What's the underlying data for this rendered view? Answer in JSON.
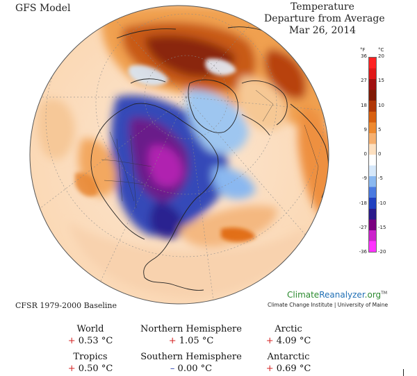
{
  "header": {
    "model": "GFS Model",
    "title_lines": [
      "Temperature",
      "Departure from Average",
      "Mar 26, 2014"
    ]
  },
  "scale": {
    "unit_f": "°F",
    "unit_c": "°C",
    "ticks_f": [
      "36",
      "27",
      "18",
      "9",
      "0",
      "-9",
      "-18",
      "-27",
      "-36"
    ],
    "ticks_c": [
      "20",
      "15",
      "10",
      "5",
      "0",
      "-5",
      "-10",
      "-15",
      "-20"
    ],
    "colors": [
      "#ff33ff",
      "#cc22cc",
      "#7a0080",
      "#2a1a8a",
      "#2040c0",
      "#4a7ae0",
      "#8ab8f0",
      "#d6e8fa",
      "#ffffff",
      "#fde0c0",
      "#f6b070",
      "#ee8a30",
      "#d86010",
      "#b03808",
      "#801a05",
      "#a01010",
      "#e01818",
      "#ff2222"
    ]
  },
  "footer": {
    "baseline": "CFSR 1979-2000 Baseline",
    "brand_part1": "Climate",
    "brand_part2": "Reanalyzer",
    "brand_part3": ".org",
    "brand_tm": "TM",
    "brand_sub": "Climate Change Institute | University of Maine"
  },
  "stats": [
    {
      "label": "World",
      "sign": "+",
      "value": "0.53 °C"
    },
    {
      "label": "Northern Hemisphere",
      "sign": "+",
      "value": "1.05 °C"
    },
    {
      "label": "Arctic",
      "sign": "+",
      "value": "4.09 °C"
    },
    {
      "label": "Tropics",
      "sign": "+",
      "value": "0.50 °C"
    },
    {
      "label": "Southern Hemisphere",
      "sign": "–",
      "value": "0.00 °C"
    },
    {
      "label": "Antarctic",
      "sign": "+",
      "value": "0.69 °C"
    }
  ]
}
